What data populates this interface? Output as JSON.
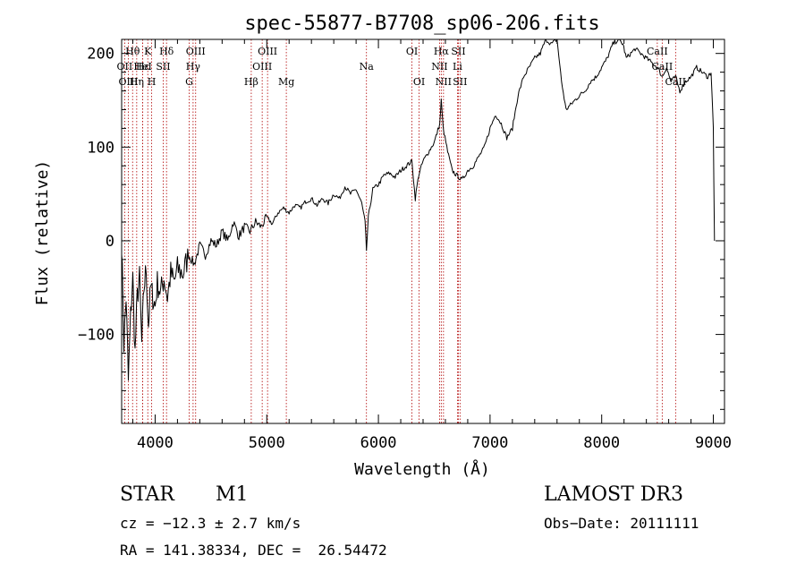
{
  "chart_data": {
    "type": "line",
    "title": "spec-55877-B7708_sp06-206.fits",
    "xlabel": "Wavelength (Å)",
    "ylabel": "Flux (relative)",
    "xlim": [
      3700,
      9100
    ],
    "ylim": [
      -195,
      215
    ],
    "xticks": [
      4000,
      5000,
      6000,
      7000,
      8000,
      9000
    ],
    "yticks": [
      -100,
      0,
      100,
      200
    ],
    "grid": false,
    "series": [
      {
        "name": "flux",
        "x": [
          3700,
          3720,
          3740,
          3760,
          3780,
          3800,
          3820,
          3840,
          3860,
          3880,
          3900,
          3920,
          3940,
          3960,
          3980,
          4000,
          4020,
          4050,
          4080,
          4110,
          4140,
          4170,
          4200,
          4250,
          4300,
          4350,
          4400,
          4450,
          4500,
          4550,
          4600,
          4650,
          4700,
          4750,
          4800,
          4850,
          4900,
          4950,
          5000,
          5050,
          5100,
          5150,
          5200,
          5250,
          5300,
          5350,
          5400,
          5450,
          5500,
          5550,
          5600,
          5650,
          5700,
          5750,
          5800,
          5850,
          5880,
          5893,
          5910,
          5950,
          6000,
          6050,
          6100,
          6150,
          6200,
          6250,
          6300,
          6330,
          6360,
          6400,
          6450,
          6500,
          6550,
          6563,
          6580,
          6620,
          6660,
          6700,
          6750,
          6800,
          6850,
          6900,
          6950,
          7000,
          7050,
          7100,
          7150,
          7200,
          7250,
          7300,
          7350,
          7400,
          7450,
          7500,
          7550,
          7600,
          7640,
          7680,
          7720,
          7760,
          7800,
          7850,
          7900,
          7950,
          8000,
          8050,
          8100,
          8150,
          8190,
          8220,
          8260,
          8300,
          8350,
          8400,
          8450,
          8500,
          8542,
          8580,
          8620,
          8662,
          8700,
          8750,
          8800,
          8850,
          8900,
          8950,
          8980,
          9000,
          9010
        ],
        "values": [
          0,
          -110,
          -60,
          -150,
          -80,
          -40,
          -120,
          -60,
          -40,
          -110,
          -50,
          -30,
          -90,
          -50,
          -60,
          -70,
          -45,
          -55,
          -40,
          -60,
          -35,
          -45,
          -30,
          -35,
          -15,
          -25,
          -5,
          -15,
          0,
          -5,
          10,
          0,
          20,
          5,
          15,
          10,
          20,
          15,
          25,
          18,
          30,
          35,
          30,
          38,
          35,
          42,
          45,
          38,
          45,
          40,
          50,
          45,
          58,
          50,
          55,
          40,
          20,
          -10,
          25,
          55,
          60,
          70,
          72,
          68,
          75,
          80,
          85,
          45,
          70,
          85,
          95,
          105,
          125,
          150,
          120,
          95,
          75,
          70,
          65,
          75,
          80,
          90,
          100,
          120,
          135,
          125,
          110,
          120,
          155,
          175,
          185,
          195,
          200,
          215,
          210,
          215,
          170,
          140,
          145,
          150,
          155,
          160,
          170,
          175,
          185,
          195,
          210,
          215,
          210,
          195,
          200,
          205,
          200,
          195,
          190,
          185,
          175,
          185,
          170,
          175,
          160,
          170,
          175,
          185,
          180,
          175,
          180,
          120,
          0
        ]
      }
    ],
    "lines": [
      {
        "label": "Hθ",
        "wl": 3798,
        "row": 1
      },
      {
        "label": "OII",
        "wl": 3727,
        "row": 2
      },
      {
        "label": "OIII",
        "wl": 3760,
        "row": 3
      },
      {
        "label": "K",
        "wl": 3934,
        "row": 1
      },
      {
        "label": "H",
        "wl": 3969,
        "row": 3
      },
      {
        "label": "Hη",
        "wl": 3835,
        "row": 3
      },
      {
        "label": "Hε",
        "wl": 3889,
        "row": 2
      },
      {
        "label": "HeI",
        "wl": 3889,
        "row": 2
      },
      {
        "label": "SII",
        "wl": 4072,
        "row": 2
      },
      {
        "label": "Hδ",
        "wl": 4102,
        "row": 1
      },
      {
        "label": "OIII",
        "wl": 4363,
        "row": 1
      },
      {
        "label": "Hγ",
        "wl": 4340,
        "row": 2
      },
      {
        "label": "G",
        "wl": 4305,
        "row": 3
      },
      {
        "label": "Hβ",
        "wl": 4861,
        "row": 3
      },
      {
        "label": "OIII",
        "wl": 5007,
        "row": 1
      },
      {
        "label": "OIII",
        "wl": 4959,
        "row": 2
      },
      {
        "label": "Mg",
        "wl": 5175,
        "row": 3
      },
      {
        "label": "Na",
        "wl": 5893,
        "row": 2
      },
      {
        "label": "OI",
        "wl": 6300,
        "row": 1
      },
      {
        "label": "OI",
        "wl": 6364,
        "row": 3
      },
      {
        "label": "Hα",
        "wl": 6563,
        "row": 1
      },
      {
        "label": "NII",
        "wl": 6548,
        "row": 2
      },
      {
        "label": "NII",
        "wl": 6583,
        "row": 3
      },
      {
        "label": "SII",
        "wl": 6716,
        "row": 1
      },
      {
        "label": "Li",
        "wl": 6708,
        "row": 2
      },
      {
        "label": "SII",
        "wl": 6731,
        "row": 3
      },
      {
        "label": "CaII",
        "wl": 8498,
        "row": 1
      },
      {
        "label": "CaII",
        "wl": 8542,
        "row": 2
      },
      {
        "label": "CaII",
        "wl": 8662,
        "row": 3
      }
    ]
  },
  "info": {
    "object_class": "STAR",
    "subclass": "M1",
    "survey": "LAMOST DR3",
    "cz": "cz = −12.3 ± 2.7 km/s",
    "obs_date": "Obs−Date: 20111111",
    "coords": "RA = 141.38334, DEC =  26.54472"
  }
}
